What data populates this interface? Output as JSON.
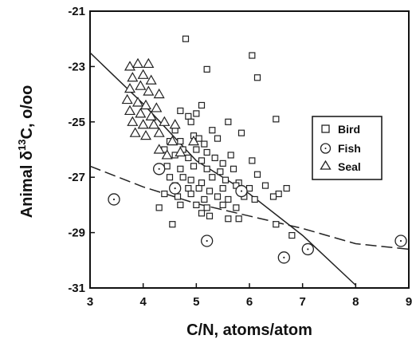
{
  "chart_data": {
    "type": "scatter",
    "xlabel": "C/N,  atoms/atom",
    "ylabel_prefix": "Animal δ",
    "ylabel_sup": "13",
    "ylabel_suffix": "C, o/oo",
    "xlim": [
      3,
      9
    ],
    "ylim": [
      -31,
      -21
    ],
    "x_ticks": [
      3,
      4,
      5,
      6,
      7,
      8,
      9
    ],
    "y_ticks": [
      -31,
      -29,
      -27,
      -25,
      -23,
      -21
    ],
    "grid": false,
    "legend_position": "right",
    "series": [
      {
        "name": "Bird",
        "marker": "square",
        "points": [
          [
            4.8,
            -22.0
          ],
          [
            6.05,
            -22.6
          ],
          [
            5.2,
            -23.1
          ],
          [
            6.15,
            -23.4
          ],
          [
            5.1,
            -24.4
          ],
          [
            4.7,
            -24.6
          ],
          [
            4.85,
            -24.8
          ],
          [
            5.0,
            -24.7
          ],
          [
            4.9,
            -25.0
          ],
          [
            5.6,
            -25.0
          ],
          [
            6.5,
            -24.9
          ],
          [
            5.85,
            -25.4
          ],
          [
            5.3,
            -25.3
          ],
          [
            4.6,
            -25.3
          ],
          [
            4.95,
            -25.5
          ],
          [
            5.05,
            -25.6
          ],
          [
            4.7,
            -25.7
          ],
          [
            5.15,
            -25.8
          ],
          [
            5.4,
            -25.6
          ],
          [
            4.5,
            -25.7
          ],
          [
            4.75,
            -26.0
          ],
          [
            5.0,
            -26.0
          ],
          [
            5.2,
            -26.1
          ],
          [
            5.65,
            -26.2
          ],
          [
            6.05,
            -26.4
          ],
          [
            4.4,
            -26.0
          ],
          [
            4.6,
            -26.2
          ],
          [
            4.85,
            -26.3
          ],
          [
            5.1,
            -26.4
          ],
          [
            5.35,
            -26.3
          ],
          [
            5.5,
            -26.5
          ],
          [
            4.45,
            -26.6
          ],
          [
            4.7,
            -26.7
          ],
          [
            4.95,
            -26.6
          ],
          [
            5.2,
            -26.7
          ],
          [
            5.45,
            -26.8
          ],
          [
            5.7,
            -26.7
          ],
          [
            6.15,
            -26.9
          ],
          [
            4.5,
            -27.0
          ],
          [
            4.75,
            -27.0
          ],
          [
            4.9,
            -27.1
          ],
          [
            5.1,
            -27.2
          ],
          [
            5.3,
            -27.0
          ],
          [
            5.55,
            -27.1
          ],
          [
            5.8,
            -27.2
          ],
          [
            4.6,
            -27.3
          ],
          [
            4.85,
            -27.4
          ],
          [
            5.05,
            -27.4
          ],
          [
            5.25,
            -27.5
          ],
          [
            5.5,
            -27.4
          ],
          [
            5.75,
            -27.3
          ],
          [
            6.0,
            -27.4
          ],
          [
            6.3,
            -27.3
          ],
          [
            4.4,
            -27.6
          ],
          [
            4.65,
            -27.7
          ],
          [
            4.9,
            -27.6
          ],
          [
            5.15,
            -27.8
          ],
          [
            5.4,
            -27.7
          ],
          [
            5.6,
            -27.8
          ],
          [
            5.9,
            -27.7
          ],
          [
            6.1,
            -27.8
          ],
          [
            6.55,
            -27.6
          ],
          [
            6.45,
            -27.7
          ],
          [
            6.7,
            -27.4
          ],
          [
            4.7,
            -28.0
          ],
          [
            5.0,
            -28.0
          ],
          [
            5.2,
            -28.1
          ],
          [
            5.5,
            -28.0
          ],
          [
            5.75,
            -28.1
          ],
          [
            4.3,
            -28.1
          ],
          [
            5.1,
            -28.3
          ],
          [
            5.6,
            -28.5
          ],
          [
            5.8,
            -28.5
          ],
          [
            5.25,
            -28.4
          ],
          [
            4.55,
            -28.7
          ],
          [
            6.5,
            -28.7
          ],
          [
            6.8,
            -29.1
          ]
        ]
      },
      {
        "name": "Fish",
        "marker": "circle",
        "points": [
          [
            3.45,
            -27.8
          ],
          [
            4.3,
            -26.7
          ],
          [
            4.6,
            -27.4
          ],
          [
            5.85,
            -27.5
          ],
          [
            5.2,
            -29.3
          ],
          [
            6.65,
            -29.9
          ],
          [
            7.1,
            -29.6
          ],
          [
            8.85,
            -29.3
          ]
        ]
      },
      {
        "name": "Seal",
        "marker": "triangle",
        "points": [
          [
            3.75,
            -23.0
          ],
          [
            3.9,
            -22.9
          ],
          [
            4.1,
            -22.9
          ],
          [
            3.8,
            -23.4
          ],
          [
            4.0,
            -23.3
          ],
          [
            4.15,
            -23.5
          ],
          [
            3.75,
            -23.8
          ],
          [
            3.95,
            -23.7
          ],
          [
            4.1,
            -23.9
          ],
          [
            4.3,
            -24.0
          ],
          [
            3.7,
            -24.2
          ],
          [
            3.9,
            -24.3
          ],
          [
            4.05,
            -24.4
          ],
          [
            4.25,
            -24.5
          ],
          [
            3.75,
            -24.6
          ],
          [
            3.95,
            -24.7
          ],
          [
            4.15,
            -24.8
          ],
          [
            3.8,
            -25.0
          ],
          [
            4.0,
            -25.1
          ],
          [
            4.2,
            -25.1
          ],
          [
            4.4,
            -25.0
          ],
          [
            4.6,
            -25.1
          ],
          [
            3.85,
            -25.4
          ],
          [
            4.05,
            -25.5
          ],
          [
            4.3,
            -25.4
          ],
          [
            4.55,
            -25.7
          ],
          [
            4.3,
            -26.0
          ],
          [
            4.45,
            -26.2
          ],
          [
            4.7,
            -26.1
          ],
          [
            4.95,
            -25.7
          ]
        ]
      }
    ],
    "lines": [
      {
        "style": "solid",
        "points": [
          [
            3.0,
            -22.5
          ],
          [
            4.0,
            -24.35
          ],
          [
            5.0,
            -26.4
          ],
          [
            6.0,
            -27.6
          ],
          [
            7.0,
            -29.1
          ],
          [
            8.0,
            -30.9
          ]
        ]
      },
      {
        "style": "dashed",
        "points": [
          [
            3.0,
            -26.6
          ],
          [
            4.0,
            -27.35
          ],
          [
            5.0,
            -27.95
          ],
          [
            6.0,
            -28.4
          ],
          [
            7.0,
            -28.85
          ],
          [
            8.0,
            -29.4
          ],
          [
            9.0,
            -29.6
          ]
        ]
      }
    ]
  }
}
